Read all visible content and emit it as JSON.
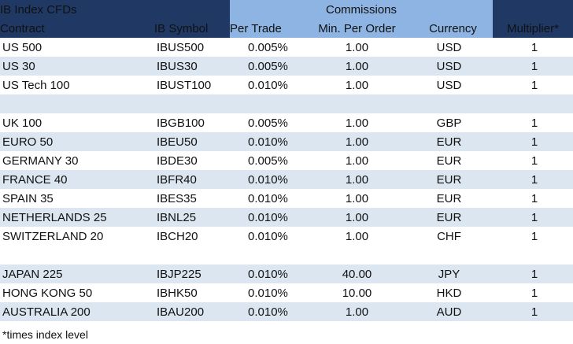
{
  "title": "IB Index CFDs",
  "commissions_label": "Commissions",
  "columns": {
    "contract": "Contract",
    "symbol": "IB Symbol",
    "per_trade": "Per Trade",
    "min_per_order": "Min. Per Order",
    "currency": "Currency",
    "multiplier": "Multiplier*"
  },
  "rows": [
    {
      "contract": "US 500",
      "symbol": "IBUS500",
      "per_trade": "0.005%",
      "min_per_order": "1.00",
      "currency": "USD",
      "multiplier": "1"
    },
    {
      "contract": "US 30",
      "symbol": "IBUS30",
      "per_trade": "0.005%",
      "min_per_order": "1.00",
      "currency": "USD",
      "multiplier": "1"
    },
    {
      "contract": "US Tech 100",
      "symbol": "IBUST100",
      "per_trade": "0.010%",
      "min_per_order": "1.00",
      "currency": "USD",
      "multiplier": "1"
    },
    {
      "contract": "UK 100",
      "symbol": "IBGB100",
      "per_trade": "0.005%",
      "min_per_order": "1.00",
      "currency": "GBP",
      "multiplier": "1"
    },
    {
      "contract": "EURO 50",
      "symbol": "IBEU50",
      "per_trade": "0.010%",
      "min_per_order": "1.00",
      "currency": "EUR",
      "multiplier": "1"
    },
    {
      "contract": "GERMANY 30",
      "symbol": "IBDE30",
      "per_trade": "0.005%",
      "min_per_order": "1.00",
      "currency": "EUR",
      "multiplier": "1"
    },
    {
      "contract": "FRANCE 40",
      "symbol": "IBFR40",
      "per_trade": "0.010%",
      "min_per_order": "1.00",
      "currency": "EUR",
      "multiplier": "1"
    },
    {
      "contract": "SPAIN 35",
      "symbol": "IBES35",
      "per_trade": "0.010%",
      "min_per_order": "1.00",
      "currency": "EUR",
      "multiplier": "1"
    },
    {
      "contract": "NETHERLANDS 25",
      "symbol": "IBNL25",
      "per_trade": "0.010%",
      "min_per_order": "1.00",
      "currency": "EUR",
      "multiplier": "1"
    },
    {
      "contract": "SWITZERLAND 20",
      "symbol": "IBCH20",
      "per_trade": "0.010%",
      "min_per_order": "1.00",
      "currency": "CHF",
      "multiplier": "1"
    },
    {
      "contract": "JAPAN 225",
      "symbol": "IBJP225",
      "per_trade": "0.010%",
      "min_per_order": "40.00",
      "currency": "JPY",
      "multiplier": "1"
    },
    {
      "contract": "HONG KONG 50",
      "symbol": "IBHK50",
      "per_trade": "0.010%",
      "min_per_order": "10.00",
      "currency": "HKD",
      "multiplier": "1"
    },
    {
      "contract": "AUSTRALIA 200",
      "symbol": "IBAU200",
      "per_trade": "0.010%",
      "min_per_order": "1.00",
      "currency": "AUD",
      "multiplier": "1"
    }
  ],
  "footnote": "*times index level",
  "colors": {
    "header_dark": "#1f3864",
    "header_light": "#8db4e2",
    "row_shade": "#dce6f1",
    "row_white": "#ffffff"
  }
}
